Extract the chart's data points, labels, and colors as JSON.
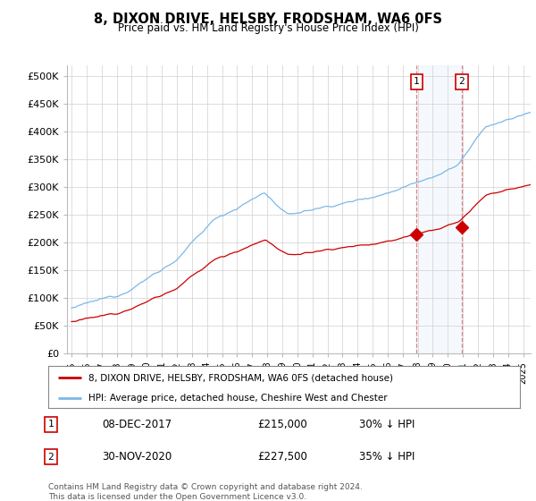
{
  "title": "8, DIXON DRIVE, HELSBY, FRODSHAM, WA6 0FS",
  "subtitle": "Price paid vs. HM Land Registry's House Price Index (HPI)",
  "ylabel_ticks": [
    "£0",
    "£50K",
    "£100K",
    "£150K",
    "£200K",
    "£250K",
    "£300K",
    "£350K",
    "£400K",
    "£450K",
    "£500K"
  ],
  "ytick_vals": [
    0,
    50000,
    100000,
    150000,
    200000,
    250000,
    300000,
    350000,
    400000,
    450000,
    500000
  ],
  "ylim": [
    0,
    520000
  ],
  "xlim_start": 1994.7,
  "xlim_end": 2025.5,
  "sale1_date": 2017.92,
  "sale1_price": 215000,
  "sale2_date": 2020.92,
  "sale2_price": 227500,
  "hpi_color": "#7ab8e8",
  "sale_color": "#cc0000",
  "annotation_box_color": "#cc0000",
  "legend_text1": "8, DIXON DRIVE, HELSBY, FRODSHAM, WA6 0FS (detached house)",
  "legend_text2": "HPI: Average price, detached house, Cheshire West and Chester",
  "table_row1": [
    "1",
    "08-DEC-2017",
    "£215,000",
    "30% ↓ HPI"
  ],
  "table_row2": [
    "2",
    "30-NOV-2020",
    "£227,500",
    "35% ↓ HPI"
  ],
  "footer": "Contains HM Land Registry data © Crown copyright and database right 2024.\nThis data is licensed under the Open Government Licence v3.0.",
  "background_color": "#ffffff"
}
